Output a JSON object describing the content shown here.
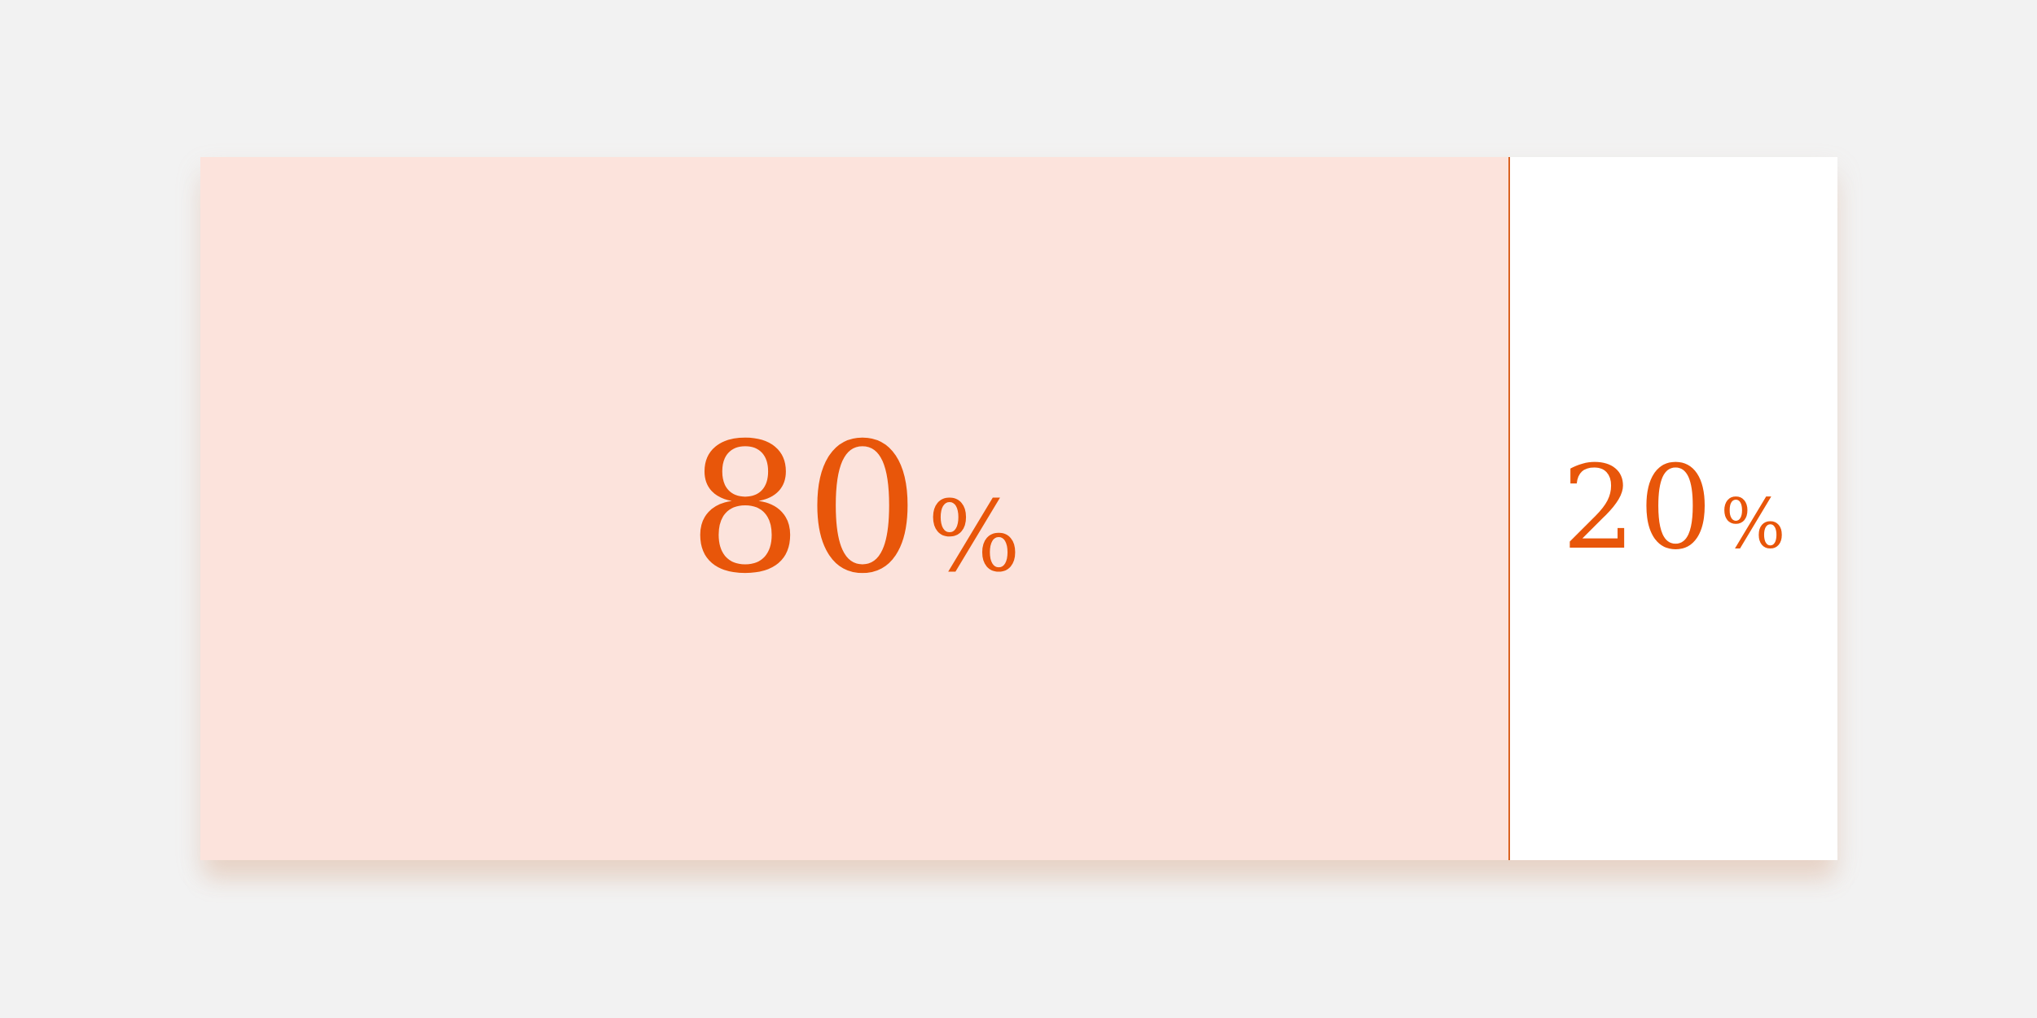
{
  "chart_data": {
    "type": "bar",
    "orientation": "horizontal-stacked",
    "categories": [
      "share-a",
      "share-b"
    ],
    "values": [
      80,
      20
    ],
    "labels": [
      {
        "number": "80",
        "suffix": "%"
      },
      {
        "number": "20",
        "suffix": "%"
      }
    ],
    "title": "",
    "xlabel": "",
    "ylabel": "",
    "grid": false,
    "legend": "none"
  },
  "colors": {
    "background": "#f2f2f2",
    "major_fill": "#fce3dc",
    "minor_fill": "#ffffff",
    "accent": "#e8560a",
    "divider": "#d9611f"
  }
}
